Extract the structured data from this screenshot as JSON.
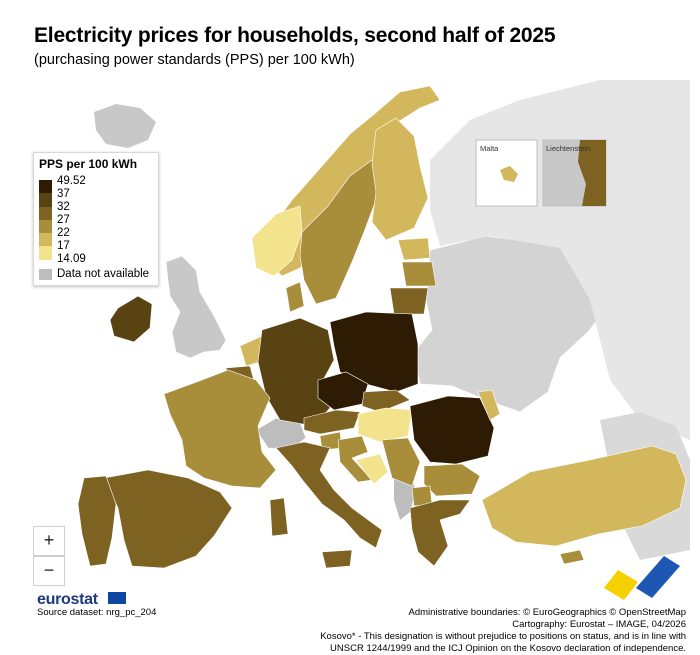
{
  "header": {
    "title": "Electricity prices for households, second half of 2025",
    "subtitle": "(purchasing power standards (PPS) per 100 kWh)"
  },
  "legend": {
    "title": "PPS per 100 kWh",
    "ticks": [
      "49.52",
      "37",
      "32",
      "27",
      "22",
      "17",
      "14.09"
    ],
    "bins": [
      {
        "from": 37,
        "to": 49.52,
        "color": "#2e1b04"
      },
      {
        "from": 32,
        "to": 37,
        "color": "#5a4312"
      },
      {
        "from": 27,
        "to": 32,
        "color": "#7d6221"
      },
      {
        "from": 22,
        "to": 27,
        "color": "#a88d3b"
      },
      {
        "from": 17,
        "to": 22,
        "color": "#d3b75c"
      },
      {
        "from": 14.09,
        "to": 17,
        "color": "#f3e38d"
      }
    ],
    "na_label": "Data not available",
    "na_color": "#bdbdbd"
  },
  "insets": {
    "malta": "Malta",
    "liechtenstein": "Liechtenstein"
  },
  "controls": {
    "zoom_in": "+",
    "zoom_out": "−"
  },
  "brand": "eurostat",
  "footer": {
    "source": "Source dataset: nrg_pc_204",
    "boundaries": "Administrative boundaries: © EuroGeographics © OpenStreetMap",
    "cartography": "Cartography: Eurostat – IMAGE, 04/2026",
    "kosovo_1": "Kosovo* - This designation is without prejudice to positions on status, and is in line with",
    "kosovo_2": "UNSCR 1244/1999 and the ICJ Opinion on the Kosovo declaration of independence."
  },
  "regions": [
    {
      "id": "poland",
      "bin": 0
    },
    {
      "id": "czechia",
      "bin": 0
    },
    {
      "id": "romania",
      "bin": 0
    },
    {
      "id": "germany",
      "bin": 1
    },
    {
      "id": "ireland",
      "bin": 1
    },
    {
      "id": "italy",
      "bin": 2
    },
    {
      "id": "portugal",
      "bin": 2
    },
    {
      "id": "spain",
      "bin": 2
    },
    {
      "id": "belgium",
      "bin": 2
    },
    {
      "id": "austria",
      "bin": 2
    },
    {
      "id": "slovakia",
      "bin": 2
    },
    {
      "id": "greece",
      "bin": 2
    },
    {
      "id": "lithuania",
      "bin": 2
    },
    {
      "id": "france",
      "bin": 3
    },
    {
      "id": "sweden-south",
      "bin": 3
    },
    {
      "id": "denmark",
      "bin": 3
    },
    {
      "id": "latvia",
      "bin": 3
    },
    {
      "id": "slovenia",
      "bin": 3
    },
    {
      "id": "croatia",
      "bin": 3
    },
    {
      "id": "serbia",
      "bin": 3
    },
    {
      "id": "bulgaria",
      "bin": 3
    },
    {
      "id": "north-macedonia",
      "bin": 3
    },
    {
      "id": "cyprus",
      "bin": 3
    },
    {
      "id": "norway",
      "bin": 4
    },
    {
      "id": "finland",
      "bin": 4
    },
    {
      "id": "estonia",
      "bin": 4
    },
    {
      "id": "turkey",
      "bin": 4
    },
    {
      "id": "moldova",
      "bin": 4
    },
    {
      "id": "netherlands",
      "bin": 4
    },
    {
      "id": "norway-south",
      "bin": 5
    },
    {
      "id": "hungary",
      "bin": 5
    },
    {
      "id": "bosnia",
      "bin": 5
    }
  ]
}
